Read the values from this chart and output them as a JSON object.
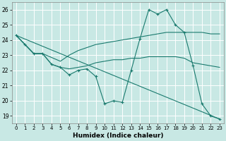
{
  "xlabel": "Humidex (Indice chaleur)",
  "bg_color": "#c8e8e4",
  "grid_color": "#ffffff",
  "line_color": "#1a7a6e",
  "xlim": [
    -0.5,
    23.5
  ],
  "ylim": [
    18.5,
    26.5
  ],
  "yticks": [
    19,
    20,
    21,
    22,
    23,
    24,
    25,
    26
  ],
  "xticks": [
    0,
    1,
    2,
    3,
    4,
    5,
    6,
    7,
    8,
    9,
    10,
    11,
    12,
    13,
    14,
    15,
    16,
    17,
    18,
    19,
    20,
    21,
    22,
    23
  ],
  "line1_x": [
    0,
    1,
    2,
    3,
    4,
    5,
    6,
    7,
    8,
    9,
    10,
    11,
    12,
    13,
    14,
    15,
    16,
    17,
    18,
    19,
    20,
    21,
    22,
    23
  ],
  "line1_y": [
    24.3,
    23.7,
    23.1,
    23.1,
    22.4,
    22.2,
    21.7,
    22.0,
    22.1,
    21.6,
    19.8,
    20.0,
    19.9,
    22.0,
    24.1,
    26.0,
    25.7,
    26.0,
    25.0,
    24.5,
    22.3,
    19.8,
    19.0,
    18.8
  ],
  "line2_x": [
    0,
    2,
    3,
    5,
    6,
    7,
    8,
    9,
    10,
    11,
    12,
    13,
    14,
    15,
    16,
    17,
    18,
    19,
    20,
    21,
    22,
    23
  ],
  "line2_y": [
    24.3,
    23.1,
    23.1,
    22.6,
    23.0,
    23.3,
    23.5,
    23.7,
    23.8,
    23.9,
    24.0,
    24.1,
    24.2,
    24.3,
    24.4,
    24.5,
    24.5,
    24.5,
    24.5,
    24.5,
    24.4,
    24.4
  ],
  "line3_x": [
    0,
    2,
    3,
    4,
    5,
    6,
    7,
    8,
    9,
    10,
    11,
    12,
    13,
    14,
    15,
    16,
    17,
    18,
    19,
    20,
    21,
    22,
    23
  ],
  "line3_y": [
    24.3,
    23.1,
    23.1,
    22.4,
    22.2,
    22.1,
    22.2,
    22.3,
    22.5,
    22.6,
    22.7,
    22.7,
    22.8,
    22.8,
    22.9,
    22.9,
    22.9,
    22.9,
    22.8,
    22.5,
    22.4,
    22.3,
    22.2
  ],
  "line4_x": [
    0,
    23
  ],
  "line4_y": [
    24.3,
    18.8
  ]
}
